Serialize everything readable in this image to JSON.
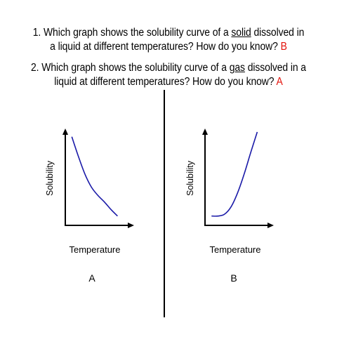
{
  "questions": [
    {
      "number": "1.",
      "line1_pre": "Which graph shows the solubility curve of a ",
      "line1_underlined": "solid",
      "line1_post": " dissolved in",
      "line2": "a liquid at different temperatures?  How do you know?",
      "answer": "B"
    },
    {
      "number": "2.",
      "line1_pre": "Which graph shows the solubility curve of a ",
      "line1_underlined": "gas",
      "line1_post": " dissolved in a",
      "line2": "liquid at different temperatures?  How do you know?",
      "answer": "A"
    }
  ],
  "colors": {
    "answer": "#e3120b",
    "curve": "#1a1aa8",
    "axis": "#000000"
  },
  "chart_data": [
    {
      "type": "line",
      "title": "",
      "panel_label": "A",
      "xlabel": "Temperature",
      "ylabel": "Solubility",
      "trend": "decreasing",
      "grid": false,
      "series": [
        {
          "x": [
            0.1,
            0.2,
            0.3,
            0.4,
            0.5,
            0.6,
            0.7,
            0.8
          ],
          "y": [
            0.95,
            0.74,
            0.55,
            0.41,
            0.32,
            0.25,
            0.17,
            0.1
          ]
        }
      ]
    },
    {
      "type": "line",
      "title": "",
      "panel_label": "B",
      "xlabel": "Temperature",
      "ylabel": "Solubility",
      "trend": "increasing",
      "grid": false,
      "series": [
        {
          "x": [
            0.1,
            0.2,
            0.3,
            0.4,
            0.5,
            0.6,
            0.7,
            0.8
          ],
          "y": [
            0.1,
            0.1,
            0.12,
            0.2,
            0.35,
            0.55,
            0.78,
            1.0
          ]
        }
      ]
    }
  ]
}
